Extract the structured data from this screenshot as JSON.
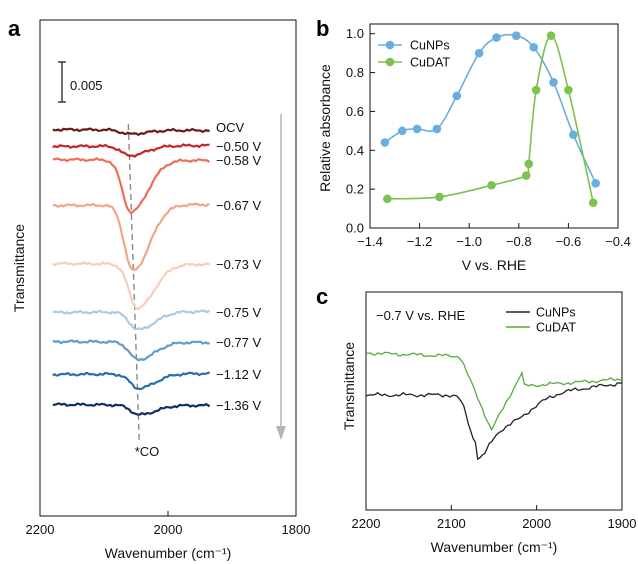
{
  "chart_data": [
    {
      "panel": "a",
      "type": "line",
      "xlabel": "Wavenumber (cm⁻¹)",
      "ylabel": "Transmittance",
      "xlim": [
        2200,
        1800
      ],
      "xticks": [
        2200,
        2000,
        1800
      ],
      "scale_bar_label": "0.005",
      "annotation": "*CO",
      "series": [
        {
          "name": "OCV",
          "color": "#6b1a1a",
          "dip_x": 2060,
          "dip_depth": 0.0005
        },
        {
          "name": "−0.50 V",
          "color": "#c8252b",
          "dip_x": 2060,
          "dip_depth": 0.0012
        },
        {
          "name": "−0.58 V",
          "color": "#ea6f58",
          "dip_x": 2058,
          "dip_depth": 0.0065
        },
        {
          "name": "−0.67 V",
          "color": "#f3a58c",
          "dip_x": 2055,
          "dip_depth": 0.0082
        },
        {
          "name": "−0.73 V",
          "color": "#f9cdb9",
          "dip_x": 2048,
          "dip_depth": 0.0055
        },
        {
          "name": "−0.75 V",
          "color": "#a9cbe6",
          "dip_x": 2047,
          "dip_depth": 0.0022
        },
        {
          "name": "−0.77 V",
          "color": "#5f9ccf",
          "dip_x": 2047,
          "dip_depth": 0.0022
        },
        {
          "name": "−1.12 V",
          "color": "#2b6eaa",
          "dip_x": 2046,
          "dip_depth": 0.0018
        },
        {
          "name": "−1.36 V",
          "color": "#0f2f66",
          "dip_x": 2045,
          "dip_depth": 0.0012
        }
      ]
    },
    {
      "panel": "b",
      "type": "line",
      "xlabel": "V vs. RHE",
      "ylabel": "Relative absorbance",
      "xlim": [
        -1.4,
        -0.4
      ],
      "ylim": [
        0.0,
        1.05
      ],
      "xticks": [
        -1.4,
        -1.2,
        -1.0,
        -0.8,
        -0.6,
        -0.4
      ],
      "yticks": [
        0.0,
        0.2,
        0.4,
        0.6,
        0.8,
        1.0
      ],
      "legend": "top-left",
      "series": [
        {
          "name": "CuNPs",
          "color": "#6aaee0",
          "x": [
            -1.34,
            -1.27,
            -1.21,
            -1.13,
            -1.05,
            -0.96,
            -0.89,
            -0.81,
            -0.74,
            -0.66,
            -0.58,
            -0.49
          ],
          "y": [
            0.44,
            0.5,
            0.51,
            0.51,
            0.68,
            0.9,
            0.98,
            0.99,
            0.93,
            0.75,
            0.48,
            0.23
          ]
        },
        {
          "name": "CuDAT",
          "color": "#7cc24e",
          "x": [
            -1.33,
            -1.12,
            -0.91,
            -0.77,
            -0.76,
            -0.73,
            -0.67,
            -0.6,
            -0.5
          ],
          "y": [
            0.15,
            0.16,
            0.22,
            0.27,
            0.33,
            0.71,
            0.99,
            0.71,
            0.13
          ]
        }
      ]
    },
    {
      "panel": "c",
      "type": "line",
      "xlabel": "Wavenumber (cm⁻¹)",
      "ylabel": "Transmittance",
      "xlim": [
        2200,
        1900
      ],
      "xticks": [
        2200,
        2100,
        2000,
        1900
      ],
      "annotation": "−0.7 V vs. RHE",
      "legend": "top-right",
      "series": [
        {
          "name": "CuNPs",
          "color": "#222222",
          "dip_x": 2071
        },
        {
          "name": "CuDAT",
          "color": "#54ad3d",
          "dip_x": 2053
        }
      ]
    }
  ]
}
